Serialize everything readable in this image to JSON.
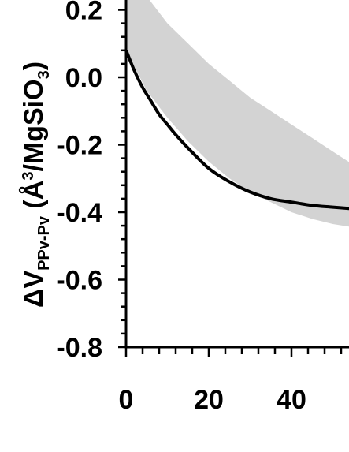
{
  "chart_data": {
    "type": "line",
    "xlabel": "",
    "ylabel": {
      "prefix": "ΔV",
      "subscript": "PPv-Pv",
      "unit_open": " (Å",
      "unit_sup": "3",
      "unit_mid": "/MgSiO",
      "unit_sub": "3",
      "unit_close": ")"
    },
    "xlim": [
      0,
      55
    ],
    "ylim": [
      -0.8,
      0.25
    ],
    "x_ticks": [
      0,
      20,
      40
    ],
    "x_tick_labels": [
      "0",
      "20",
      "40"
    ],
    "y_ticks": [
      0.2,
      0.0,
      -0.2,
      -0.4,
      -0.6,
      -0.8
    ],
    "y_tick_labels": [
      "0.2",
      "0.0",
      "-0.2",
      "-0.4",
      "-0.6",
      "-0.8"
    ],
    "minor_x_step": 4,
    "minor_y_step": 0.04,
    "colors": {
      "line": "#000000",
      "band": "#d3d3d3",
      "axis": "#000000"
    },
    "series": [
      {
        "kind": "line",
        "x": [
          0,
          2,
          4,
          6,
          8,
          10,
          12,
          15,
          20,
          25,
          30,
          35,
          40,
          45,
          50,
          55
        ],
        "y": [
          0.08,
          0.02,
          -0.03,
          -0.07,
          -0.11,
          -0.14,
          -0.17,
          -0.21,
          -0.27,
          -0.31,
          -0.34,
          -0.36,
          -0.37,
          -0.38,
          -0.385,
          -0.39
        ]
      },
      {
        "kind": "band",
        "x": [
          0,
          5,
          10,
          15,
          20,
          25,
          30,
          35,
          40,
          45,
          50,
          55
        ],
        "upper": [
          0.35,
          0.24,
          0.16,
          0.1,
          0.04,
          -0.01,
          -0.06,
          -0.1,
          -0.14,
          -0.18,
          -0.22,
          -0.26
        ],
        "lower": [
          0.08,
          -0.04,
          -0.12,
          -0.19,
          -0.25,
          -0.3,
          -0.34,
          -0.37,
          -0.4,
          -0.42,
          -0.435,
          -0.445
        ]
      }
    ]
  }
}
